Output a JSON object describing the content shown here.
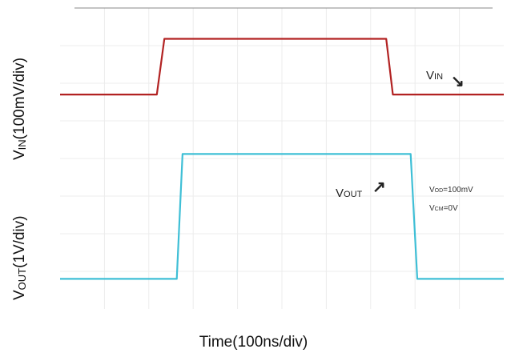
{
  "chart_data": {
    "type": "line",
    "xlabel": "Time(100ns/div)",
    "ylabels": [
      {
        "prefix": "V",
        "sub": "IN",
        "suffix": "(100mV/div)"
      },
      {
        "prefix": "V",
        "sub": "OUT",
        "suffix": "(1V/div)"
      }
    ],
    "grid": true,
    "x_divisions": 10,
    "y_divisions": 8,
    "series": [
      {
        "name": "VIN",
        "label_main": "V",
        "label_sub": "IN",
        "arrow": "↘",
        "color": "#b22222",
        "x": [
          0,
          2.18,
          2.35,
          7.35,
          7.5,
          10
        ],
        "y": [
          5.7,
          5.7,
          7.18,
          7.18,
          5.7,
          5.7
        ]
      },
      {
        "name": "VOUT",
        "label_main": "V",
        "label_sub": "OUT",
        "arrow": "↗",
        "color": "#3fbfd6",
        "x": [
          0,
          2.63,
          2.76,
          7.9,
          8.05,
          10
        ],
        "y": [
          0.8,
          0.8,
          4.12,
          4.12,
          0.8,
          0.8
        ]
      }
    ],
    "annotations": {
      "vod": {
        "prefix": "V",
        "sub": "OD",
        "value": "=100mV"
      },
      "vcm": {
        "prefix": "V",
        "sub": "CM",
        "value": "=0V"
      }
    }
  }
}
